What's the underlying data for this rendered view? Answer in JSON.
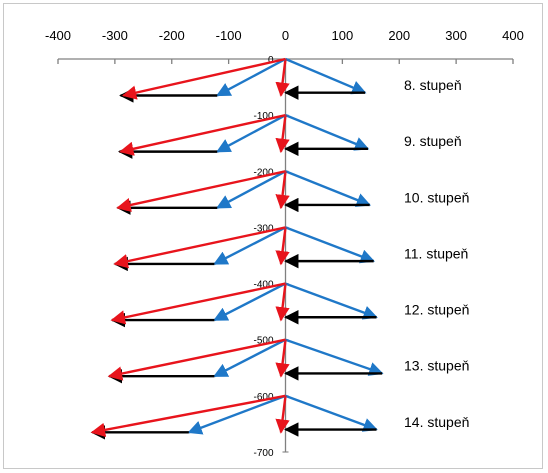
{
  "chart_data": {
    "type": "vector",
    "x_axis": {
      "min": -400,
      "max": 400,
      "ticks": [
        -400,
        -300,
        -200,
        -100,
        0,
        100,
        200,
        300,
        400
      ],
      "position": "top"
    },
    "y_axis": {
      "min": -700,
      "max": 0,
      "labeled_ticks": [
        0,
        -100,
        -200,
        -300,
        -400,
        -500,
        -600,
        -700
      ],
      "position": "center"
    },
    "colors": {
      "red": "#e8141c",
      "blue": "#1f78c8",
      "black": "#000000",
      "axis": "#808080"
    },
    "stages": [
      {
        "label": "8. stupeň",
        "origin_y": 0,
        "blue_right": [
          140,
          -60
        ],
        "black_right_tip": [
          0,
          -60
        ],
        "red_short": [
          -8,
          -65
        ],
        "blue_left": [
          -120,
          -65
        ],
        "black_left": [
          -120,
          -65,
          -290,
          -65
        ],
        "red_long": [
          -285,
          -65
        ]
      },
      {
        "label": "9. stupeň",
        "origin_y": -100,
        "blue_right": [
          145,
          -160
        ],
        "black_right_tip": [
          0,
          -160
        ],
        "red_short": [
          -8,
          -165
        ],
        "blue_left": [
          -120,
          -165
        ],
        "black_left": [
          -120,
          -165,
          -292,
          -165
        ],
        "red_long": [
          -290,
          -165
        ]
      },
      {
        "label": "10. stupeň",
        "origin_y": -200,
        "blue_right": [
          148,
          -260
        ],
        "black_right_tip": [
          0,
          -260
        ],
        "red_short": [
          -8,
          -265
        ],
        "blue_left": [
          -120,
          -265
        ],
        "black_left": [
          -120,
          -265,
          -295,
          -265
        ],
        "red_long": [
          -295,
          -265
        ]
      },
      {
        "label": "11. stupeň",
        "origin_y": -300,
        "blue_right": [
          155,
          -360
        ],
        "black_right_tip": [
          0,
          -360
        ],
        "red_short": [
          -8,
          -365
        ],
        "blue_left": [
          -125,
          -365
        ],
        "black_left": [
          -125,
          -365,
          -300,
          -365
        ],
        "red_long": [
          -300,
          -365
        ]
      },
      {
        "label": "12. stupeň",
        "origin_y": -400,
        "blue_right": [
          160,
          -460
        ],
        "black_right_tip": [
          0,
          -460
        ],
        "red_short": [
          -8,
          -465
        ],
        "blue_left": [
          -125,
          -465
        ],
        "black_left": [
          -125,
          -465,
          -305,
          -465
        ],
        "red_long": [
          -305,
          -465
        ]
      },
      {
        "label": "13. stupeň",
        "origin_y": -500,
        "blue_right": [
          170,
          -560
        ],
        "black_right_tip": [
          0,
          -560
        ],
        "red_short": [
          -8,
          -565
        ],
        "blue_left": [
          -125,
          -565
        ],
        "black_left": [
          -125,
          -565,
          -310,
          -565
        ],
        "red_long": [
          -310,
          -565
        ]
      },
      {
        "label": "14. stupeň",
        "origin_y": -600,
        "blue_right": [
          160,
          -660
        ],
        "black_right_tip": [
          0,
          -660
        ],
        "red_short": [
          -8,
          -665
        ],
        "blue_left": [
          -170,
          -665
        ],
        "black_left": [
          -170,
          -665,
          -340,
          -665
        ],
        "red_long": [
          -340,
          -665
        ]
      }
    ]
  }
}
